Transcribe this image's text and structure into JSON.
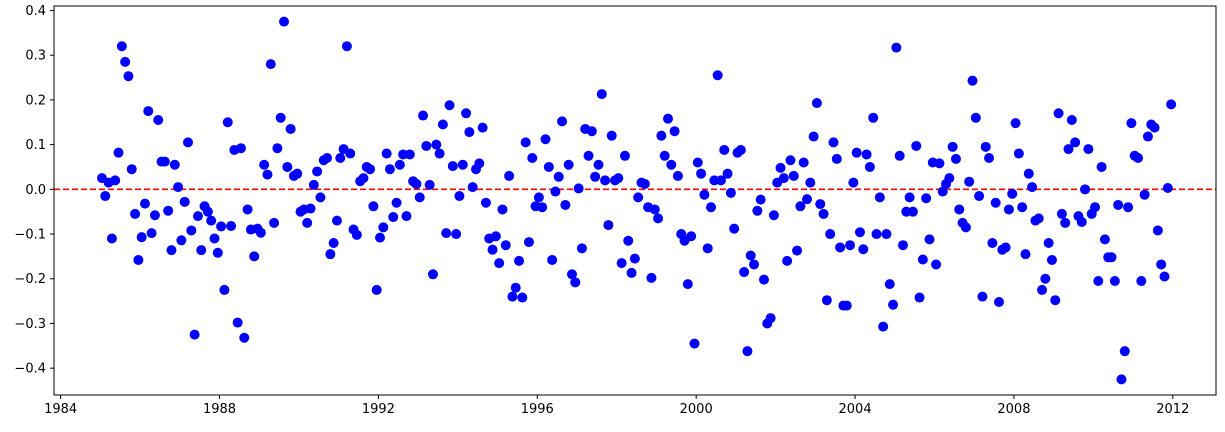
{
  "chart_data": {
    "type": "scatter",
    "title": "",
    "xlabel": "",
    "ylabel": "",
    "x_axis_type": "date",
    "xlim": [
      "1983-11-01",
      "2013-02-01"
    ],
    "ylim": [
      -0.46,
      0.41
    ],
    "grid": false,
    "legend": "none",
    "x_ticks": [
      {
        "value": "1984-01-01",
        "label": "1984"
      },
      {
        "value": "1988-01-01",
        "label": "1988"
      },
      {
        "value": "1992-01-01",
        "label": "1992"
      },
      {
        "value": "1996-01-01",
        "label": "1996"
      },
      {
        "value": "2000-01-01",
        "label": "2000"
      },
      {
        "value": "2004-01-01",
        "label": "2004"
      },
      {
        "value": "2008-01-01",
        "label": "2008"
      },
      {
        "value": "2012-01-01",
        "label": "2012"
      }
    ],
    "y_ticks": [
      {
        "value": -0.4,
        "label": "−0.4"
      },
      {
        "value": -0.3,
        "label": "−0.3"
      },
      {
        "value": -0.2,
        "label": "−0.2"
      },
      {
        "value": -0.1,
        "label": "−0.1"
      },
      {
        "value": 0.0,
        "label": "0.0"
      },
      {
        "value": 0.1,
        "label": "0.1"
      },
      {
        "value": 0.2,
        "label": "0.2"
      },
      {
        "value": 0.3,
        "label": "0.3"
      },
      {
        "value": 0.4,
        "label": "0.4"
      }
    ],
    "reference_line": {
      "y": 0.0,
      "color": "#ff0000",
      "style": "dashed"
    },
    "marker_color": "#0000ff",
    "series": [
      {
        "values": [
          0.025,
          -0.015,
          0.015,
          -0.11,
          0.02,
          0.082,
          0.32,
          0.285,
          0.253,
          0.045,
          -0.055,
          -0.158,
          -0.107,
          -0.032,
          0.175,
          -0.098,
          -0.058,
          0.155,
          0.062,
          0.062,
          -0.048,
          -0.136,
          0.055,
          0.005,
          -0.114,
          -0.028,
          0.105,
          -0.092,
          -0.325,
          -0.06,
          -0.136,
          -0.038,
          -0.05,
          -0.07,
          -0.11,
          -0.142,
          -0.083,
          -0.225,
          0.15,
          -0.082,
          0.088,
          -0.298,
          0.092,
          -0.332,
          -0.045,
          -0.09,
          -0.15,
          -0.088,
          -0.097,
          0.055,
          0.033,
          0.28,
          -0.075,
          0.092,
          0.16,
          0.375,
          0.05,
          0.135,
          0.03,
          0.035,
          -0.05,
          -0.045,
          -0.075,
          -0.043,
          0.01,
          0.04,
          -0.018,
          0.065,
          0.07,
          -0.145,
          -0.12,
          -0.07,
          0.07,
          0.09,
          0.32,
          0.08,
          -0.09,
          -0.102,
          0.018,
          0.025,
          0.05,
          0.045,
          -0.038,
          -0.225,
          -0.108,
          -0.085,
          0.08,
          0.045,
          -0.062,
          -0.03,
          0.055,
          0.078,
          -0.06,
          0.078,
          0.018,
          0.012,
          -0.018,
          0.165,
          0.097,
          0.01,
          -0.19,
          0.1,
          0.08,
          0.145,
          -0.098,
          0.188,
          0.052,
          -0.1,
          -0.015,
          0.055,
          0.17,
          0.128,
          0.005,
          0.045,
          0.058,
          0.138,
          -0.03,
          -0.11,
          -0.135,
          -0.105,
          -0.165,
          -0.045,
          -0.125,
          0.03,
          -0.24,
          -0.22,
          -0.16,
          -0.242,
          0.105,
          -0.118,
          0.07,
          -0.038,
          -0.018,
          -0.04,
          0.112,
          0.05,
          -0.158,
          -0.005,
          0.028,
          0.152,
          -0.035,
          0.055,
          -0.19,
          -0.208,
          0.002,
          -0.132,
          0.135,
          0.075,
          0.13,
          0.028,
          0.055,
          0.213,
          0.02,
          -0.08,
          0.12,
          0.02,
          0.025,
          -0.165,
          0.075,
          -0.115,
          -0.187,
          -0.155,
          -0.018,
          0.015,
          0.012,
          -0.04,
          -0.198,
          -0.045,
          -0.065,
          0.12,
          0.075,
          0.158,
          0.055,
          0.13,
          0.03,
          -0.1,
          -0.115,
          -0.212,
          -0.105,
          -0.345,
          0.06,
          0.035,
          -0.012,
          -0.132,
          -0.04,
          0.02,
          0.255,
          0.02,
          0.088,
          0.035,
          -0.008,
          -0.088,
          0.082,
          0.088,
          -0.185,
          -0.362,
          -0.148,
          -0.168,
          -0.048,
          -0.023,
          -0.202,
          -0.3,
          -0.288,
          -0.058,
          0.015,
          0.048,
          0.025,
          -0.16,
          0.065,
          0.03,
          -0.137,
          -0.038,
          0.06,
          -0.022,
          0.015,
          0.118,
          0.193,
          -0.033,
          -0.055,
          -0.248,
          -0.1,
          0.105,
          0.068,
          -0.13,
          -0.26,
          -0.26,
          -0.125,
          0.015,
          0.082,
          -0.096,
          -0.134,
          0.078,
          0.05,
          0.16,
          -0.1,
          -0.018,
          -0.307,
          -0.1,
          -0.212,
          -0.258,
          0.317,
          0.075,
          -0.125,
          -0.05,
          -0.018,
          -0.05,
          0.097,
          -0.242,
          -0.157,
          -0.02,
          -0.112,
          0.06,
          -0.168,
          0.058,
          -0.005,
          0.012,
          0.025,
          0.095,
          0.068,
          -0.045,
          -0.075,
          -0.085,
          0.017,
          0.243,
          0.16,
          -0.015,
          -0.24,
          0.095,
          0.07,
          -0.12,
          -0.03,
          -0.252,
          -0.135,
          -0.13,
          -0.045,
          -0.01,
          0.148,
          0.08,
          -0.04,
          -0.145,
          0.035,
          0.005,
          -0.07,
          -0.065,
          -0.225,
          -0.2,
          -0.12,
          -0.158,
          -0.248,
          0.17,
          -0.055,
          -0.075,
          0.09,
          0.155,
          0.105,
          -0.06,
          -0.073,
          0.0,
          0.09,
          -0.055,
          -0.04,
          -0.205,
          0.05,
          -0.112,
          -0.152,
          -0.152,
          -0.205,
          -0.035,
          -0.425,
          -0.362,
          -0.04,
          0.148,
          0.075,
          0.07,
          -0.205,
          -0.012,
          0.118,
          0.145,
          0.138,
          -0.092,
          -0.168,
          -0.195,
          0.003,
          0.19
        ]
      }
    ]
  }
}
